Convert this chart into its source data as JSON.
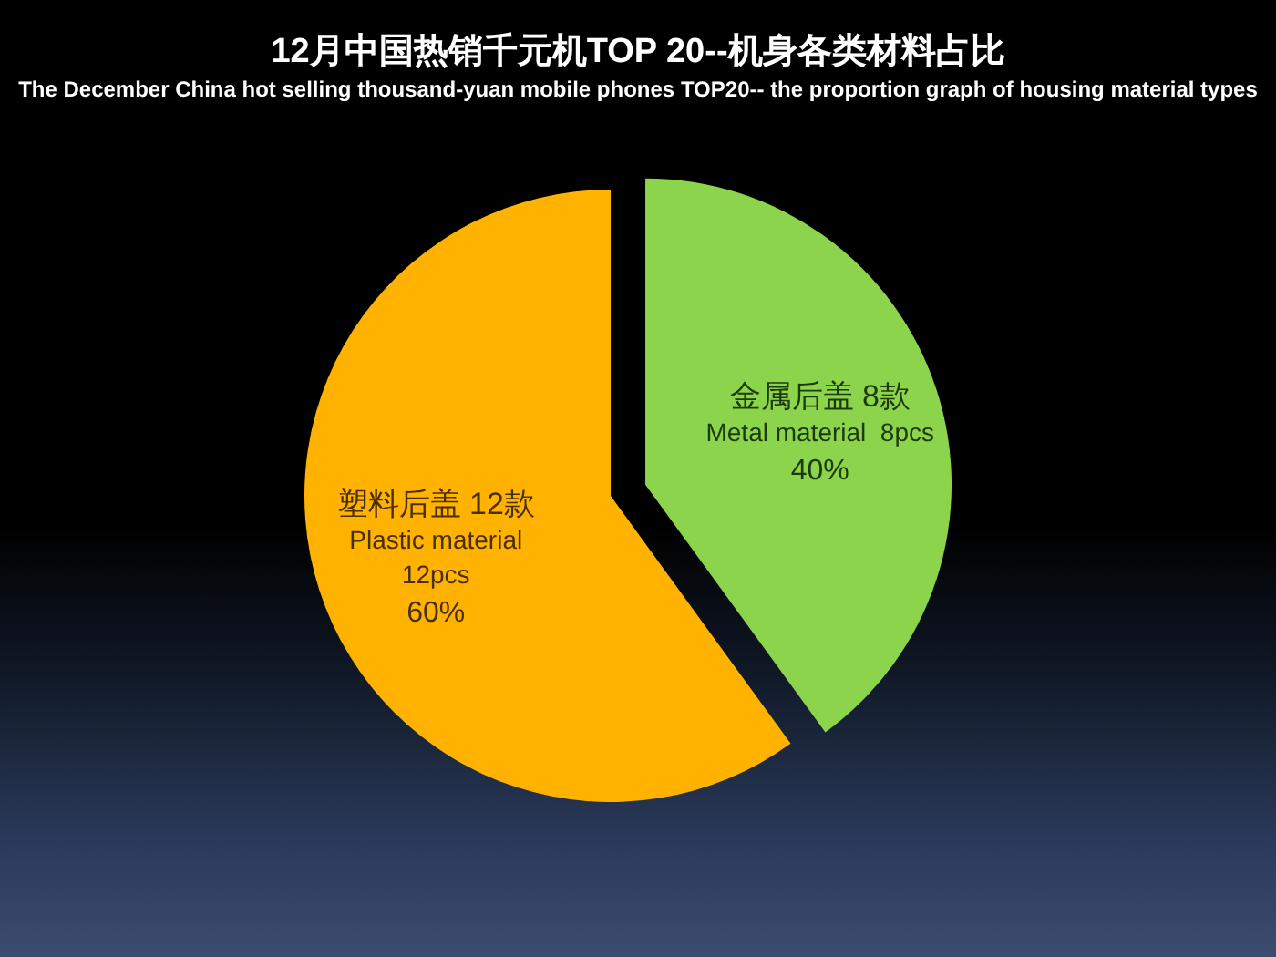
{
  "chart_data": {
    "type": "pie",
    "title": "12月中国热销千元机TOP 20--机身各类材料占比",
    "subtitle": "The December China hot selling thousand-yuan mobile phones TOP20-- the proportion graph of housing material types",
    "categories": [
      null,
      null
    ],
    "values": [
      12,
      8
    ],
    "colors": [
      "#ffb300",
      "#8cd44c"
    ],
    "value_labels": [
      "塑料后盖 12款\nPlastic material\n12pcs\n60%",
      "金属后盖 8款\nMetal material  8pcs\n40%"
    ]
  }
}
